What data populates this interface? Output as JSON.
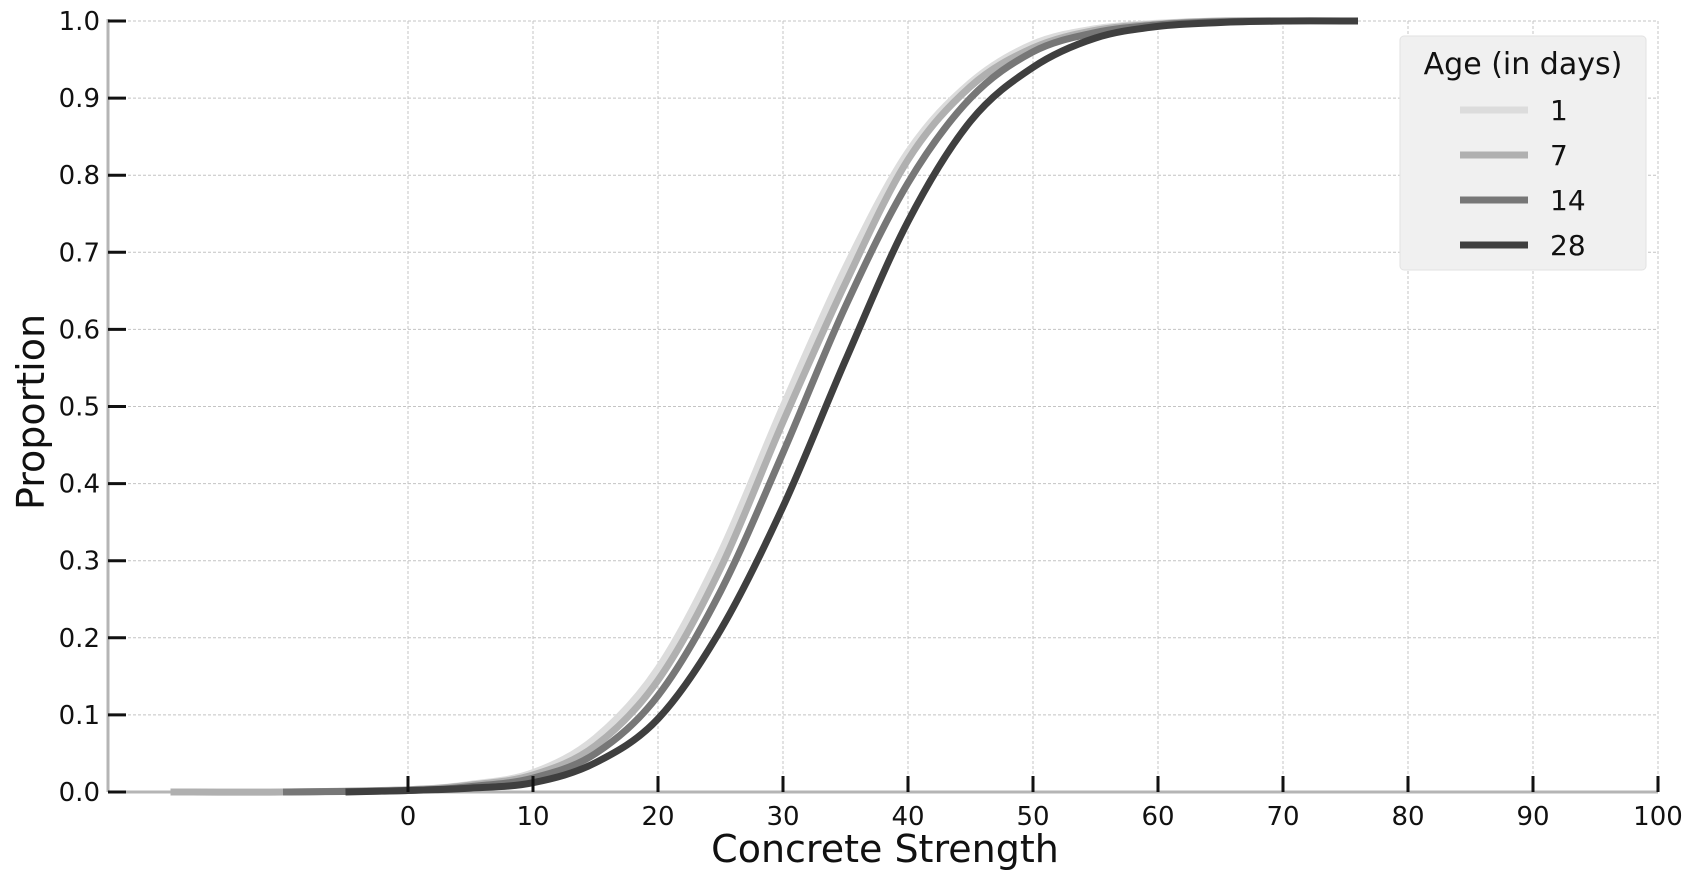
{
  "chart_data": {
    "type": "line",
    "title": "",
    "xlabel": "Concrete Strength",
    "ylabel": "Proportion",
    "xlim": [
      -24,
      100
    ],
    "ylim": [
      0,
      1
    ],
    "xticks": [
      0,
      10,
      20,
      30,
      40,
      50,
      60,
      70,
      80,
      90,
      100
    ],
    "yticks": [
      0.0,
      0.1,
      0.2,
      0.3,
      0.4,
      0.5,
      0.6,
      0.7,
      0.8,
      0.9,
      1.0
    ],
    "xtick_labels": [
      "0",
      "10",
      "20",
      "30",
      "40",
      "50",
      "60",
      "70",
      "80",
      "90",
      "100"
    ],
    "ytick_labels": [
      "0.0",
      "0.1",
      "0.2",
      "0.3",
      "0.4",
      "0.5",
      "0.6",
      "0.7",
      "0.8",
      "0.9",
      "1.0"
    ],
    "grid": true,
    "legend": {
      "title": "Age (in days)",
      "placement": "top-right"
    },
    "series": [
      {
        "name": "1",
        "color": "#dcdcdc",
        "x": [
          -19,
          -10,
          0,
          5,
          10,
          15,
          20,
          25,
          30,
          35,
          40,
          45,
          50,
          55,
          60,
          65,
          70
        ],
        "y": [
          0.0,
          0.0,
          0.003,
          0.01,
          0.025,
          0.07,
          0.16,
          0.31,
          0.5,
          0.68,
          0.83,
          0.92,
          0.97,
          0.99,
          0.997,
          1.0,
          1.0
        ]
      },
      {
        "name": "7",
        "color": "#b0b0b0",
        "x": [
          -19,
          -10,
          0,
          5,
          10,
          15,
          20,
          25,
          30,
          35,
          40,
          45,
          50,
          55,
          60,
          65,
          70
        ],
        "y": [
          0.0,
          0.0,
          0.003,
          0.009,
          0.022,
          0.06,
          0.145,
          0.29,
          0.48,
          0.66,
          0.82,
          0.915,
          0.965,
          0.988,
          0.996,
          1.0,
          1.0
        ]
      },
      {
        "name": "14",
        "color": "#777777",
        "x": [
          -10,
          0,
          5,
          10,
          15,
          20,
          25,
          30,
          35,
          40,
          45,
          50,
          55,
          60,
          65,
          70
        ],
        "y": [
          0.0,
          0.002,
          0.007,
          0.018,
          0.05,
          0.125,
          0.26,
          0.44,
          0.63,
          0.79,
          0.9,
          0.96,
          0.985,
          0.995,
          0.999,
          1.0
        ]
      },
      {
        "name": "28",
        "color": "#3f3f3f",
        "x": [
          -5,
          0,
          5,
          10,
          15,
          20,
          25,
          30,
          35,
          40,
          45,
          50,
          55,
          60,
          65,
          70,
          76
        ],
        "y": [
          0.0,
          0.002,
          0.005,
          0.012,
          0.038,
          0.095,
          0.21,
          0.37,
          0.56,
          0.74,
          0.87,
          0.94,
          0.978,
          0.993,
          0.998,
          1.0,
          1.0
        ]
      }
    ]
  }
}
